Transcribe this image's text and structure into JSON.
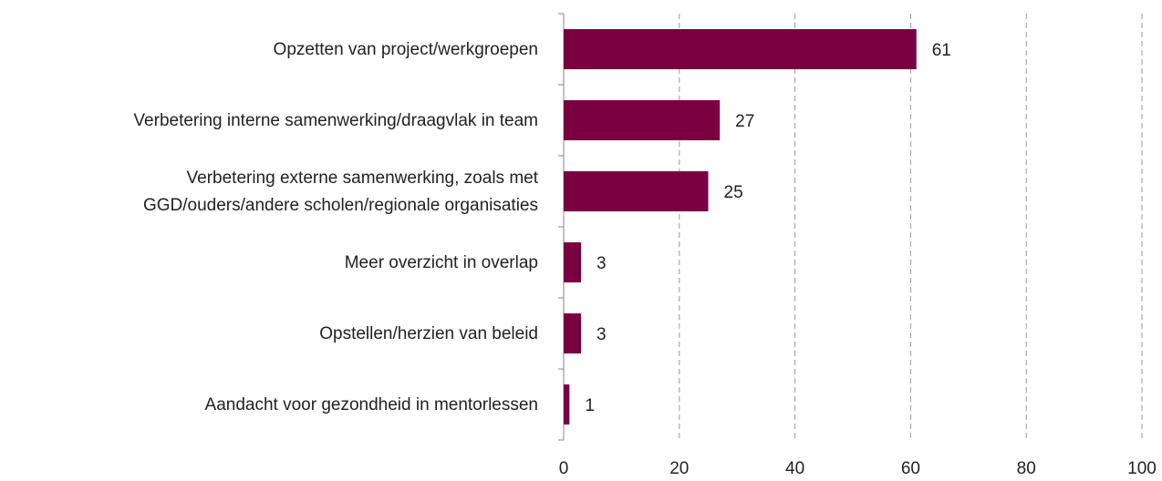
{
  "chart_data": {
    "type": "bar",
    "orientation": "horizontal",
    "categories": [
      "Opzetten van project/werkgroepen",
      "Verbetering interne samenwerking/draagvlak in team",
      "Verbetering externe samenwerking, zoals met\nGGD/ouders/andere scholen/regionale organisaties",
      "Meer overzicht in overlap",
      "Opstellen/herzien van beleid",
      "Aandacht voor gezondheid in mentorlessen"
    ],
    "values": [
      61,
      27,
      25,
      3,
      3,
      1
    ],
    "color": "#7b0041",
    "xlim": [
      0,
      100
    ],
    "xticks": [
      0,
      20,
      40,
      60,
      80,
      100
    ],
    "grid": true
  }
}
